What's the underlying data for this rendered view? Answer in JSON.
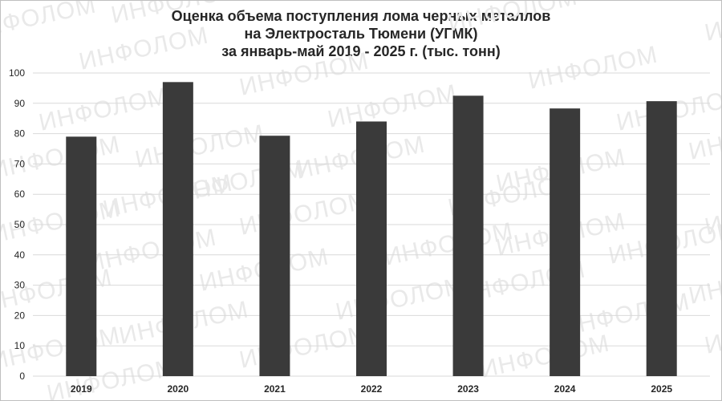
{
  "chart_data": {
    "type": "bar",
    "title_lines": [
      "Оценка объема поступления лома черных металлов",
      "на Электросталь Тюмени (УГМК)",
      "за январь-май 2019 - 2025 г. (тыс. тонн)"
    ],
    "categories": [
      "2019",
      "2020",
      "2021",
      "2022",
      "2023",
      "2024",
      "2025"
    ],
    "values": [
      79,
      97,
      79.3,
      84,
      92.5,
      88.3,
      90.7
    ],
    "ylim": [
      0,
      100
    ],
    "yticks": [
      0,
      10,
      20,
      30,
      40,
      50,
      60,
      70,
      80,
      90,
      100
    ],
    "xlabel": "",
    "ylabel": "",
    "grid": true,
    "legend": "none",
    "bar_color": "#3a3a3a",
    "grid_color": "#d9d9d9"
  },
  "watermark": {
    "text": "ИНФОЛОМ",
    "color": "#e9e9e9"
  }
}
